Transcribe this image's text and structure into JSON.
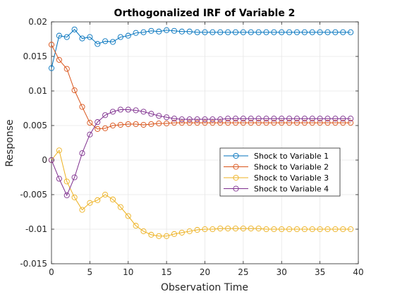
{
  "chart_data": {
    "type": "line",
    "title": "Orthogonalized IRF of Variable 2",
    "xlabel": "Observation Time",
    "ylabel": "Response",
    "xlim": [
      0,
      40
    ],
    "ylim": [
      -0.015,
      0.02
    ],
    "grid": true,
    "legend_position": "right-middle",
    "marker": "circle",
    "x_ticks": [
      "0",
      "5",
      "10",
      "15",
      "20",
      "25",
      "30",
      "35",
      "40"
    ],
    "y_ticks": [
      "-0.015",
      "-0.01",
      "-0.005",
      "0",
      "0.005",
      "0.01",
      "0.015",
      "0.02"
    ],
    "x": [
      0,
      1,
      2,
      3,
      4,
      5,
      6,
      7,
      8,
      9,
      10,
      11,
      12,
      13,
      14,
      15,
      16,
      17,
      18,
      19,
      20,
      21,
      22,
      23,
      24,
      25,
      26,
      27,
      28,
      29,
      30,
      31,
      32,
      33,
      34,
      35,
      36,
      37,
      38,
      39
    ],
    "series": [
      {
        "name": "Shock to Variable 1",
        "color": "#0072BD",
        "values": [
          0.0133,
          0.018,
          0.0178,
          0.0189,
          0.0176,
          0.0178,
          0.0168,
          0.0172,
          0.0171,
          0.0178,
          0.018,
          0.0184,
          0.0185,
          0.0187,
          0.0186,
          0.0188,
          0.0187,
          0.0186,
          0.0186,
          0.0185,
          0.0185,
          0.0185,
          0.0185,
          0.0185,
          0.0185,
          0.0185,
          0.0185,
          0.0185,
          0.0185,
          0.0185,
          0.0185,
          0.0185,
          0.0185,
          0.0185,
          0.0185,
          0.0185,
          0.0185,
          0.0185,
          0.0185,
          0.0185
        ]
      },
      {
        "name": "Shock to Variable 2",
        "color": "#D95319",
        "values": [
          0.0167,
          0.0145,
          0.0132,
          0.0101,
          0.0077,
          0.0054,
          0.0045,
          0.0046,
          0.005,
          0.0051,
          0.0052,
          0.0052,
          0.0051,
          0.0052,
          0.0053,
          0.0053,
          0.0054,
          0.0054,
          0.0054,
          0.0054,
          0.0054,
          0.0054,
          0.0054,
          0.0054,
          0.0054,
          0.0054,
          0.0054,
          0.0054,
          0.0054,
          0.0054,
          0.0054,
          0.0054,
          0.0054,
          0.0054,
          0.0054,
          0.0054,
          0.0054,
          0.0054,
          0.0054,
          0.0054
        ]
      },
      {
        "name": "Shock to Variable 3",
        "color": "#EDB120",
        "values": [
          0.0,
          0.0014,
          -0.0031,
          -0.0054,
          -0.0072,
          -0.0062,
          -0.0058,
          -0.005,
          -0.0057,
          -0.0068,
          -0.0081,
          -0.0095,
          -0.0103,
          -0.0108,
          -0.011,
          -0.011,
          -0.0107,
          -0.0105,
          -0.0103,
          -0.0101,
          -0.01,
          -0.01,
          -0.0099,
          -0.0099,
          -0.0099,
          -0.0099,
          -0.0099,
          -0.0099,
          -0.01,
          -0.01,
          -0.01,
          -0.01,
          -0.01,
          -0.01,
          -0.01,
          -0.01,
          -0.01,
          -0.01,
          -0.01,
          -0.01
        ]
      },
      {
        "name": "Shock to Variable 4",
        "color": "#7E2F8E",
        "values": [
          0.0,
          -0.0027,
          -0.0051,
          -0.0025,
          0.001,
          0.0037,
          0.0055,
          0.0065,
          0.007,
          0.0073,
          0.0073,
          0.0072,
          0.007,
          0.0067,
          0.0064,
          0.0062,
          0.006,
          0.0059,
          0.0059,
          0.0059,
          0.0059,
          0.0059,
          0.0059,
          0.006,
          0.006,
          0.006,
          0.006,
          0.006,
          0.006,
          0.006,
          0.006,
          0.006,
          0.006,
          0.006,
          0.006,
          0.006,
          0.006,
          0.006,
          0.006,
          0.006
        ]
      }
    ]
  }
}
